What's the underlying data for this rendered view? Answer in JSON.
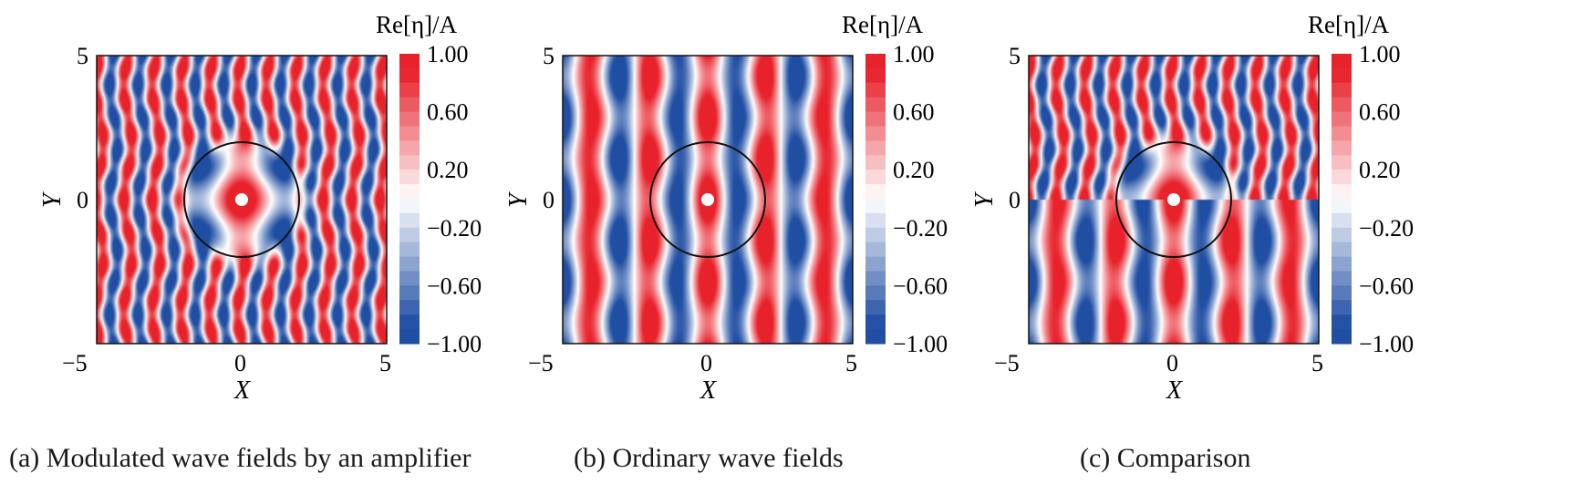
{
  "chart_data": [
    {
      "type": "heatmap",
      "caption": "(a) Modulated wave fields by an amplifier",
      "colorbar_title": "Re[η]/A",
      "colorbar_ticks": [
        "1.00",
        "0.60",
        "0.20",
        "−0.20",
        "−0.60",
        "−1.00"
      ],
      "colorbar_values": [
        1.0,
        0.6,
        0.2,
        -0.2,
        -0.6,
        -1.0
      ],
      "xlabel": "X",
      "ylabel": "Y",
      "xlim": [
        -5,
        5
      ],
      "ylim": [
        -5,
        5
      ],
      "xticks": [
        "−5",
        "0",
        "5"
      ],
      "yticks": [
        "5",
        "0"
      ],
      "circle_radius": 2,
      "field": "amplifier"
    },
    {
      "type": "heatmap",
      "caption": "(b) Ordinary wave fields",
      "colorbar_title": "Re[η]/A",
      "colorbar_ticks": [
        "1.00",
        "0.60",
        "0.20",
        "−0.20",
        "−0.60",
        "−1.00"
      ],
      "colorbar_values": [
        1.0,
        0.6,
        0.2,
        -0.2,
        -0.6,
        -1.0
      ],
      "xlabel": "X",
      "ylabel": "Y",
      "xlim": [
        -5,
        5
      ],
      "ylim": [
        -5,
        5
      ],
      "xticks": [
        "−5",
        "0",
        "5"
      ],
      "yticks": [
        "5",
        "0"
      ],
      "circle_radius": 2,
      "field": "ordinary"
    },
    {
      "type": "heatmap",
      "caption": "(c) Comparison",
      "colorbar_title": "Re[η]/A",
      "colorbar_ticks": [
        "1.00",
        "0.60",
        "0.20",
        "−0.20",
        "−0.60",
        "−1.00"
      ],
      "colorbar_values": [
        1.0,
        0.6,
        0.2,
        -0.2,
        -0.6,
        -1.0
      ],
      "xlabel": "X",
      "ylabel": "Y",
      "xlim": [
        -5,
        5
      ],
      "ylim": [
        -5,
        5
      ],
      "xticks": [
        "−5",
        "0",
        "5"
      ],
      "yticks": [
        "5",
        "0"
      ],
      "circle_radius": 2,
      "field": "comparison"
    }
  ],
  "colors": {
    "positive": "#e8222b",
    "negative": "#1f4ea3",
    "zero": "#ffffff",
    "circle": "#111111"
  }
}
